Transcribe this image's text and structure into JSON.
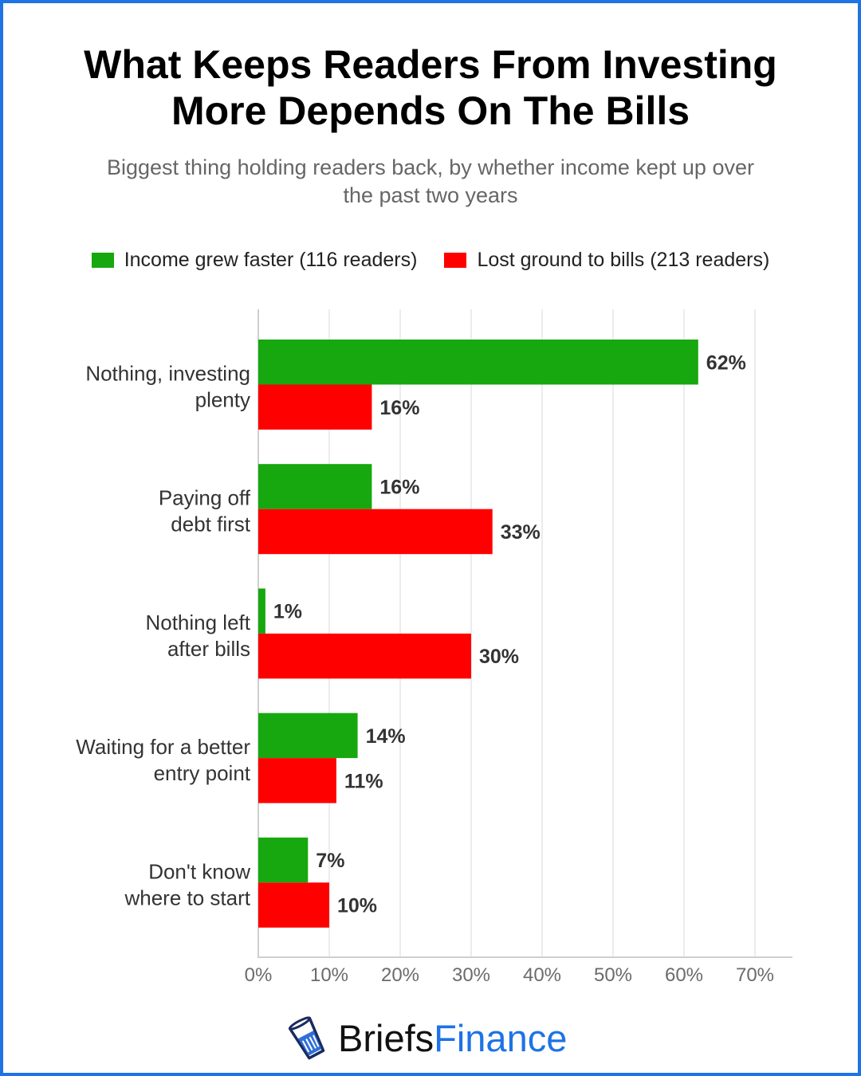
{
  "title_line1": "What Keeps Readers From Investing",
  "title_line2": "More Depends On The Bills",
  "subtitle": "Biggest thing holding readers back, by whether income kept up over the past two years",
  "logo": {
    "part1": "Briefs",
    "part2": "Finance",
    "icon": "glass-of-money-icon"
  },
  "colors": {
    "green": "#16a80e",
    "red": "#ff0000",
    "frame": "#1e73e6"
  },
  "chart_data": {
    "type": "bar",
    "orientation": "horizontal",
    "categories": [
      [
        "Nothing, investing",
        "plenty"
      ],
      [
        "Paying off",
        "debt first"
      ],
      [
        "Nothing left",
        "after bills"
      ],
      [
        "Waiting for a better",
        "entry point"
      ],
      [
        "Don't know",
        "where to start"
      ]
    ],
    "series": [
      {
        "name": "Income grew faster (116 readers)",
        "color": "#16a80e",
        "values": [
          62,
          16,
          1,
          14,
          7
        ]
      },
      {
        "name": "Lost ground to bills (213 readers)",
        "color": "#ff0000",
        "values": [
          16,
          33,
          30,
          11,
          10
        ]
      }
    ],
    "value_suffix": "%",
    "xlim": [
      0,
      75
    ],
    "xticks": [
      0,
      10,
      20,
      30,
      40,
      50,
      60,
      70
    ],
    "xtick_labels": [
      "0%",
      "10%",
      "20%",
      "30%",
      "40%",
      "50%",
      "60%",
      "70%"
    ],
    "grid": true,
    "legend_position": "top"
  }
}
